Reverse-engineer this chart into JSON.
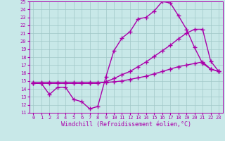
{
  "xlabel": "Windchill (Refroidissement éolien,°C)",
  "xlim": [
    -0.5,
    23.5
  ],
  "ylim": [
    11,
    25
  ],
  "xticks": [
    0,
    1,
    2,
    3,
    4,
    5,
    6,
    7,
    8,
    9,
    10,
    11,
    12,
    13,
    14,
    15,
    16,
    17,
    18,
    19,
    20,
    21,
    22,
    23
  ],
  "yticks": [
    11,
    12,
    13,
    14,
    15,
    16,
    17,
    18,
    19,
    20,
    21,
    22,
    23,
    24,
    25
  ],
  "bg_color": "#c8e8e8",
  "line_color": "#aa00aa",
  "grid_color": "#a0c8c8",
  "line1_x": [
    0,
    1,
    2,
    3,
    4,
    5,
    6,
    7,
    8,
    9,
    10,
    11,
    12,
    13,
    14,
    15,
    16,
    17,
    18,
    19,
    20,
    21,
    22,
    23
  ],
  "line1_y": [
    14.7,
    14.7,
    13.3,
    14.2,
    14.2,
    12.7,
    12.4,
    11.5,
    11.8,
    15.5,
    18.8,
    20.4,
    21.2,
    22.8,
    23.0,
    23.8,
    25.0,
    24.8,
    23.2,
    21.5,
    19.2,
    17.2,
    16.5,
    16.2
  ],
  "line2_x": [
    0,
    1,
    2,
    3,
    4,
    5,
    6,
    7,
    8,
    9,
    10,
    11,
    12,
    13,
    14,
    15,
    16,
    17,
    18,
    19,
    20,
    21,
    22,
    23
  ],
  "line2_y": [
    14.7,
    14.7,
    14.7,
    14.7,
    14.7,
    14.7,
    14.7,
    14.7,
    14.7,
    14.9,
    15.3,
    15.8,
    16.2,
    16.8,
    17.4,
    18.1,
    18.8,
    19.5,
    20.3,
    21.0,
    21.5,
    21.5,
    17.5,
    16.2
  ],
  "line3_x": [
    0,
    1,
    2,
    3,
    4,
    5,
    6,
    7,
    8,
    9,
    10,
    11,
    12,
    13,
    14,
    15,
    16,
    17,
    18,
    19,
    20,
    21,
    22,
    23
  ],
  "line3_y": [
    14.8,
    14.8,
    14.8,
    14.8,
    14.8,
    14.8,
    14.8,
    14.8,
    14.8,
    14.8,
    14.9,
    15.0,
    15.2,
    15.4,
    15.6,
    15.9,
    16.2,
    16.5,
    16.8,
    17.0,
    17.2,
    17.4,
    16.5,
    16.2
  ],
  "marker": "+",
  "markersize": 4,
  "linewidth": 1.0,
  "tick_fontsize": 5.0,
  "label_fontsize": 6.0
}
